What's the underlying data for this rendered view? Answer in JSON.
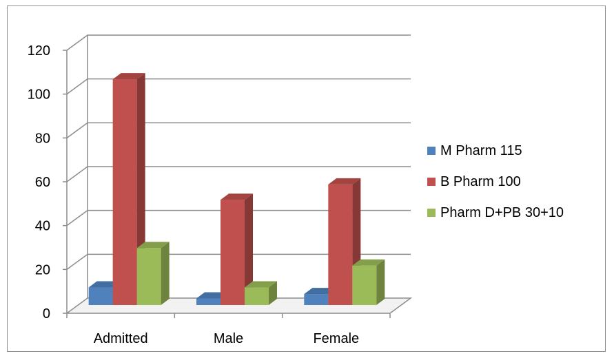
{
  "chart_data": {
    "type": "bar",
    "style": "3d-clustered-column",
    "categories": [
      "Admitted",
      "Male",
      "Female"
    ],
    "series": [
      {
        "name": "M Pharm 115",
        "values": [
          8,
          3,
          5
        ],
        "color": "#4f81bd"
      },
      {
        "name": "B Pharm 100",
        "values": [
          103,
          48,
          55
        ],
        "color": "#c0504d"
      },
      {
        "name": "Pharm D+PB 30+10",
        "values": [
          26,
          8,
          18
        ],
        "color": "#9bbb59"
      }
    ],
    "y_ticks": [
      "0",
      "20",
      "40",
      "60",
      "80",
      "100",
      "120"
    ],
    "ylim": [
      0,
      120
    ],
    "grid": true,
    "legend_position": "right"
  }
}
